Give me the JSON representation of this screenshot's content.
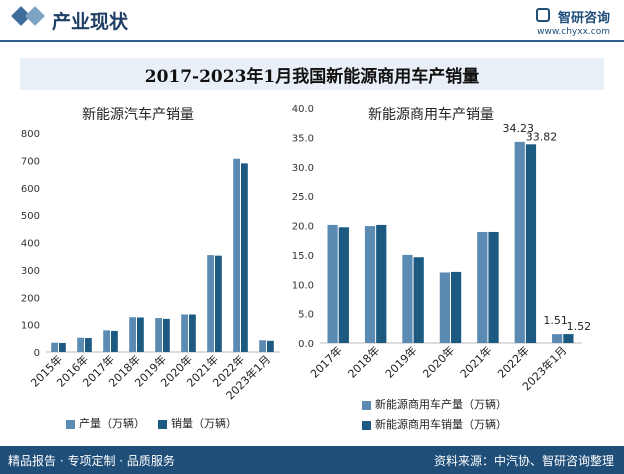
{
  "header": {
    "title": "产业现状",
    "brand": "智研咨询",
    "url": "www.chyxx.com"
  },
  "main_title": "2017-2023年1月我国新能源商用车产销量",
  "footer": {
    "left": "精品报告 · 专项定制 · 品质服务",
    "right": "资料来源：中汽协、智研咨询整理"
  },
  "colors": {
    "production": "#5b8bb3",
    "sales": "#1c5a82"
  },
  "chart_data": [
    {
      "type": "bar",
      "title": "新能源汽车产销量",
      "categories": [
        "2015年",
        "2016年",
        "2017年",
        "2018年",
        "2019年",
        "2020年",
        "2021年",
        "2022年",
        "2023年1月"
      ],
      "series": [
        {
          "name": "产量（万辆）",
          "values": [
            34,
            52,
            79,
            127,
            124,
            137,
            354,
            706,
            43
          ]
        },
        {
          "name": "销量（万辆）",
          "values": [
            33,
            51,
            77,
            126,
            121,
            137,
            352,
            689,
            41
          ]
        }
      ],
      "yticks": [
        0,
        100,
        200,
        300,
        400,
        500,
        600,
        700,
        800
      ],
      "ylim": [
        0,
        800
      ]
    },
    {
      "type": "bar",
      "title": "新能源商用车产销量",
      "categories": [
        "2017年",
        "2018年",
        "2019年",
        "2020年",
        "2021年",
        "2022年",
        "2023年1月"
      ],
      "series": [
        {
          "name": "新能源商用车产量（万辆）",
          "values": [
            20.1,
            19.9,
            15.0,
            12.0,
            18.9,
            34.23,
            1.51
          ]
        },
        {
          "name": "新能源商用车销量（万辆）",
          "values": [
            19.7,
            20.1,
            14.6,
            12.1,
            18.9,
            33.82,
            1.52
          ]
        }
      ],
      "data_labels": {
        "5": [
          "34.23",
          "33.82"
        ],
        "6": [
          "1.51",
          "1.52"
        ]
      },
      "yticks": [
        "0.0",
        "5.0",
        "10.0",
        "15.0",
        "20.0",
        "25.0",
        "30.0",
        "35.0",
        "40.0"
      ],
      "ylim": [
        0,
        40
      ]
    }
  ]
}
